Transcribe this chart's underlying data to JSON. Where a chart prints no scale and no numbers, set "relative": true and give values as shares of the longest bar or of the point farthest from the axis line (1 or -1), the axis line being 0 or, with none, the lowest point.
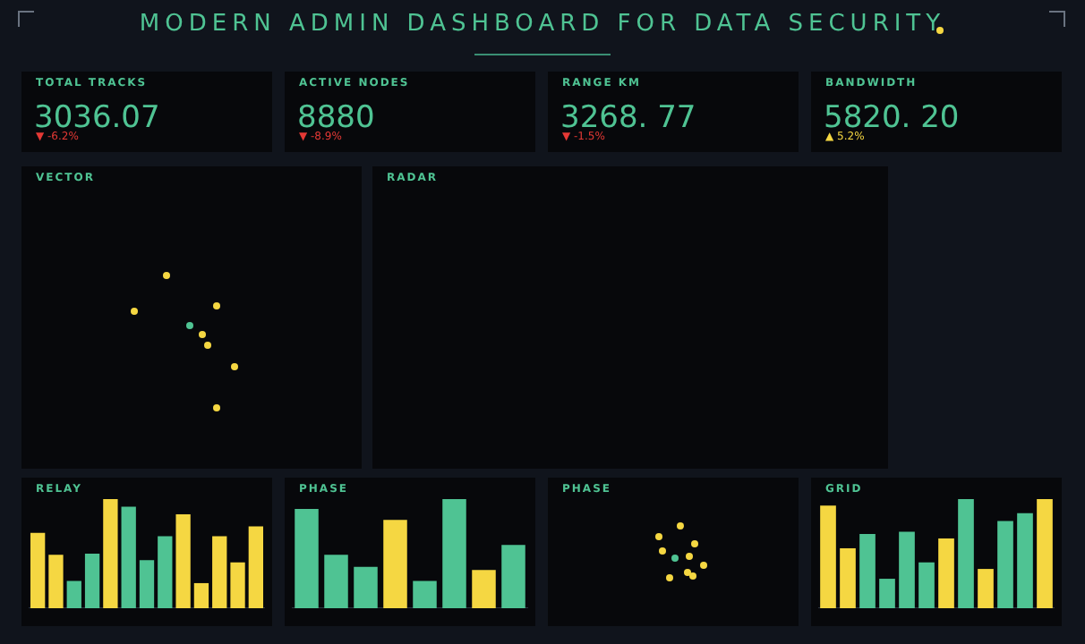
{
  "chart_data": [
    {
      "type": "other",
      "title": "MODERN ADMIN DASHBOARD FOR DATA SECURITY"
    },
    {
      "type": "other",
      "title": "TOTAL TRACKS",
      "annotations": [
        "3036.07",
        "▼ -6.2%"
      ],
      "colors": [
        "#4fc393",
        "#e53935"
      ]
    },
    {
      "type": "other",
      "title": "ACTIVE NODES",
      "annotations": [
        "8880",
        "▼ -8.9%"
      ],
      "colors": [
        "#4fc393",
        "#e53935"
      ]
    },
    {
      "type": "other",
      "title": "RANGE KM",
      "annotations": [
        "3268. 77",
        "▼ -1.5%"
      ],
      "colors": [
        "#4fc393",
        "#e53935"
      ]
    },
    {
      "type": "other",
      "title": "BANDWIDTH",
      "annotations": [
        "5820. 20",
        "▲ 5.2%"
      ],
      "colors": [
        "#4fc393",
        "#f5d742"
      ]
    },
    {
      "type": "other",
      "title": "VECTOR"
    },
    {
      "type": "other",
      "title": "RADAR"
    },
    {
      "type": "bar",
      "title": "RELAY",
      "relative": true,
      "categories": [
        null,
        null,
        null,
        null,
        null,
        null,
        null,
        null,
        null,
        null,
        null,
        null,
        null
      ],
      "values": [
        0.69,
        0.49,
        0.25,
        0.5,
        1,
        0.93,
        0.44,
        0.66,
        0.86,
        0.23,
        0.66,
        0.42,
        0.75
      ],
      "colors": [
        "#f5d742",
        "#f5d742",
        "#4fc393",
        "#4fc393",
        "#f5d742",
        "#4fc393",
        "#4fc393",
        "#4fc393",
        "#f5d742",
        "#f5d742",
        "#f5d742",
        "#f5d742",
        "#f5d742"
      ]
    },
    {
      "type": "bar",
      "title": "PHASE",
      "relative": true,
      "categories": [
        null,
        null,
        null,
        null,
        null,
        null,
        null,
        null
      ],
      "values": [
        0.91,
        0.49,
        0.38,
        0.81,
        0.25,
        1,
        0.35,
        0.58
      ],
      "colors": [
        "#4fc393",
        "#4fc393",
        "#4fc393",
        "#f5d742",
        "#4fc393",
        "#4fc393",
        "#f5d742",
        "#4fc393"
      ]
    },
    {
      "type": "other",
      "title": "PHASE"
    },
    {
      "type": "bar",
      "title": "GRID",
      "relative": true,
      "categories": [
        null,
        null,
        null,
        null,
        null,
        null,
        null,
        null,
        null,
        null,
        null,
        null
      ],
      "values": [
        0.94,
        0.55,
        0.68,
        0.27,
        0.7,
        0.42,
        0.64,
        1,
        0.36,
        0.8,
        0.87,
        1
      ],
      "colors": [
        "#f5d742",
        "#f5d742",
        "#4fc393",
        "#4fc393",
        "#4fc393",
        "#4fc393",
        "#f5d742",
        "#4fc393",
        "#f5d742",
        "#4fc393",
        "#4fc393",
        "#f5d742"
      ]
    }
  ]
}
